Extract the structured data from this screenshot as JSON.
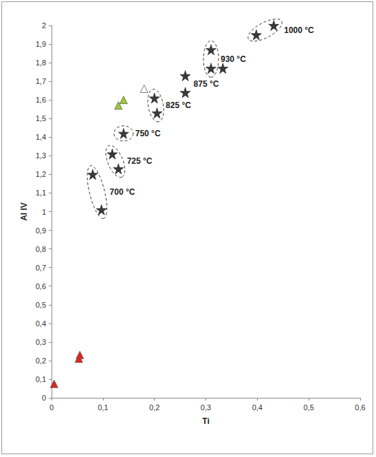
{
  "chart_data": {
    "type": "scatter",
    "x_label": "Ti",
    "y_label": "Al IV",
    "xlim": [
      0,
      0.6
    ],
    "xticks": [
      0,
      {
        "value": 0.1,
        "label": "0,1"
      },
      {
        "value": 0.2,
        "label": "0,2"
      },
      {
        "value": 0.3,
        "label": "0,3"
      },
      {
        "value": 0.4,
        "label": "0,4"
      },
      {
        "value": 0.5,
        "label": "0,5"
      },
      {
        "value": 0.6,
        "label": "0,6"
      }
    ],
    "ylim": [
      0,
      2
    ],
    "yticks": [
      0,
      {
        "value": 0.1,
        "label": "0,1"
      },
      {
        "value": 0.2,
        "label": "0,2"
      },
      {
        "value": 0.3,
        "label": "0,3"
      },
      {
        "value": 0.4,
        "label": "0,4"
      },
      {
        "value": 0.5,
        "label": "0,5"
      },
      {
        "value": 0.6,
        "label": "0,6"
      },
      {
        "value": 0.7,
        "label": "0,7"
      },
      {
        "value": 0.8,
        "label": "0,8"
      },
      {
        "value": 0.9,
        "label": "0,9"
      },
      1,
      {
        "value": 1.1,
        "label": "1,1"
      },
      {
        "value": 1.2,
        "label": "1,2"
      },
      {
        "value": 1.3,
        "label": "1,3"
      },
      {
        "value": 1.4,
        "label": "1,4"
      },
      {
        "value": 1.5,
        "label": "1,5"
      },
      {
        "value": 1.6,
        "label": "1,6"
      },
      {
        "value": 1.7,
        "label": "1,7"
      },
      {
        "value": 1.8,
        "label": "1,8"
      },
      {
        "value": 1.9,
        "label": "1,9"
      },
      2
    ],
    "grid": false,
    "series": [
      {
        "marker": "star",
        "color": "#3a3a3a",
        "x": [
          0.08,
          0.097,
          0.118,
          0.13,
          0.14,
          0.2,
          0.205,
          0.26,
          0.26,
          0.31,
          0.31,
          0.333,
          0.398,
          0.432
        ],
        "values": [
          1.2,
          1.01,
          1.31,
          1.23,
          1.42,
          1.61,
          1.53,
          1.73,
          1.64,
          1.87,
          1.77,
          1.77,
          1.95,
          2.0
        ]
      },
      {
        "marker": "triangle",
        "color": "#e3221c",
        "x": [
          0.005,
          0.053,
          0.055
        ],
        "values": [
          0.075,
          0.21,
          0.23
        ]
      },
      {
        "marker": "triangle",
        "color": "#9acd32",
        "x": [
          0.13,
          0.14
        ],
        "values": [
          1.57,
          1.6
        ]
      },
      {
        "marker": "triangle",
        "color": "#ffffff",
        "x": [
          0.18
        ],
        "values": [
          1.66
        ]
      }
    ],
    "annotations": [
      {
        "text": "700 °C",
        "points": [
          0,
          1
        ],
        "line_style": "dashed"
      },
      {
        "text": "725 °C",
        "points": [
          2,
          3
        ],
        "line_style": "dashed"
      },
      {
        "text": "750 °C",
        "points": [
          4
        ],
        "line_style": "dashed"
      },
      {
        "text": "825 °C",
        "points": [
          5,
          6
        ],
        "line_style": "dashed"
      },
      {
        "text": "875 °C",
        "points": [
          7,
          8
        ]
      },
      {
        "text": "930 °C",
        "points": [
          9,
          10
        ],
        "line_style": "dashed"
      },
      {
        "text": "1000 °C",
        "points": [
          12,
          13
        ],
        "line_style": "dashed"
      }
    ]
  }
}
